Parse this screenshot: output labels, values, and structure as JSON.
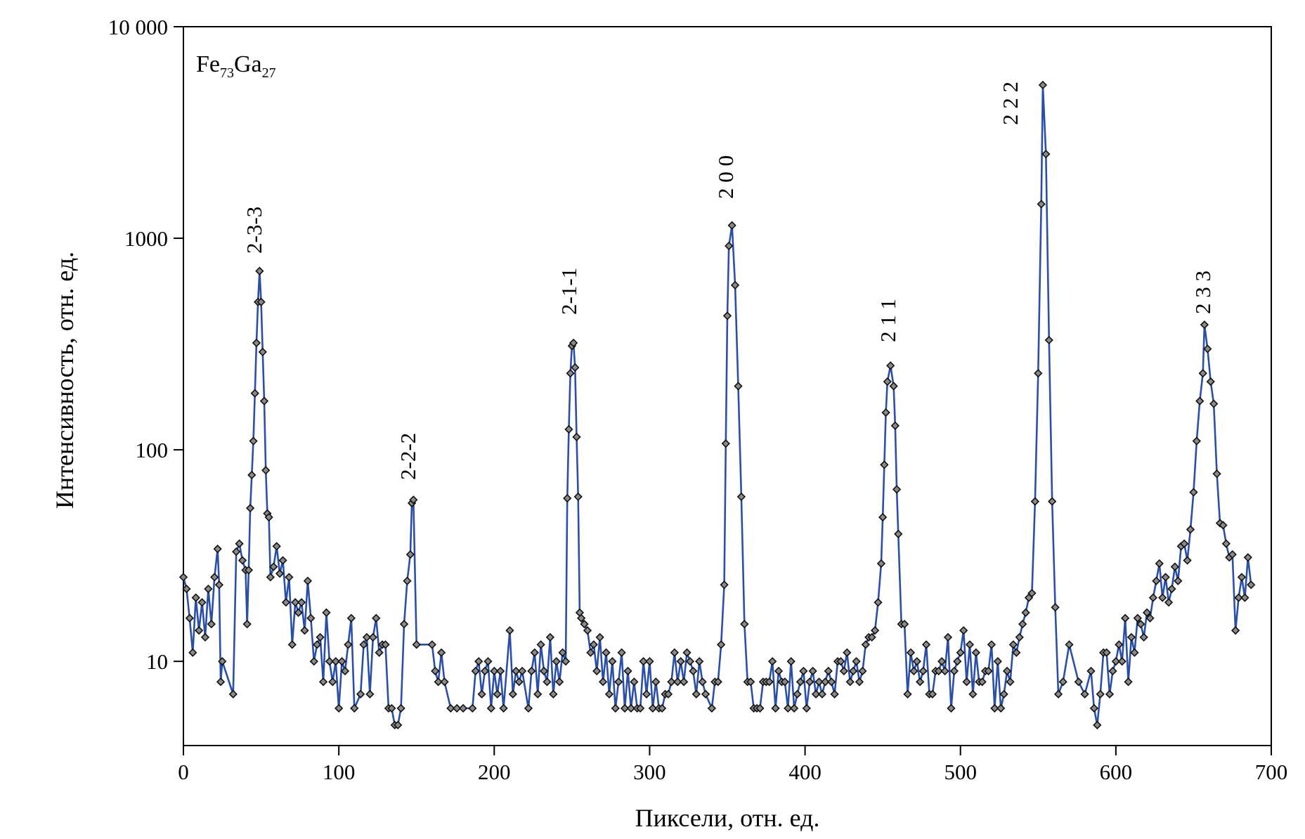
{
  "chart_data": {
    "type": "line",
    "xlabel": "Пиксели, отн. ед.",
    "ylabel": "Интенсивность, отн. ед.",
    "formula": [
      "Fe",
      "73",
      "Ga",
      "27"
    ],
    "annotations": [
      "2-3-3",
      "2-2-2",
      "2-1-1",
      "2 0 0",
      "2 1 1",
      "2 2 2",
      "2 3 3"
    ],
    "color": "#2a4fa8",
    "marker_color": "#8a8a8a",
    "log_y": true,
    "xlim": [
      0,
      700
    ],
    "xticks": [
      0,
      100,
      200,
      300,
      400,
      500,
      600,
      700
    ],
    "ylim": [
      4,
      10000
    ],
    "yticks": [
      10,
      100,
      1000,
      {
        "value": 10000,
        "label": "10 000"
      }
    ],
    "x": [
      0,
      2,
      4,
      6,
      8,
      10,
      12,
      14,
      16,
      18,
      20,
      22,
      23,
      24,
      25,
      32,
      34,
      36,
      38,
      40,
      41,
      42,
      43,
      44,
      45,
      46,
      47,
      48,
      49,
      50,
      51,
      52,
      53,
      54,
      55,
      56,
      58,
      60,
      62,
      64,
      66,
      68,
      70,
      72,
      74,
      76,
      78,
      80,
      82,
      84,
      86,
      88,
      90,
      92,
      94,
      96,
      98,
      100,
      102,
      104,
      106,
      108,
      110,
      114,
      116,
      118,
      120,
      122,
      124,
      126,
      128,
      130,
      132,
      134,
      136,
      138,
      140,
      142,
      144,
      146,
      147,
      148,
      150,
      160,
      162,
      164,
      166,
      168,
      172,
      176,
      180,
      186,
      188,
      190,
      192,
      194,
      196,
      198,
      200,
      202,
      204,
      206,
      210,
      212,
      214,
      216,
      218,
      222,
      224,
      226,
      228,
      230,
      232,
      234,
      236,
      238,
      240,
      242,
      244,
      246,
      247,
      248,
      249,
      250,
      251,
      252,
      253,
      254,
      255,
      256,
      258,
      260,
      262,
      264,
      266,
      268,
      270,
      272,
      274,
      276,
      278,
      280,
      282,
      284,
      286,
      288,
      290,
      292,
      294,
      296,
      298,
      300,
      302,
      304,
      306,
      308,
      310,
      312,
      314,
      316,
      318,
      320,
      322,
      324,
      326,
      328,
      330,
      332,
      334,
      336,
      340,
      342,
      344,
      346,
      348,
      349,
      350,
      351,
      353,
      355,
      357,
      359,
      361,
      363,
      365,
      367,
      369,
      371,
      373,
      375,
      377,
      379,
      381,
      383,
      385,
      387,
      389,
      391,
      393,
      395,
      397,
      399,
      401,
      403,
      405,
      407,
      409,
      411,
      413,
      415,
      417,
      419,
      421,
      423,
      425,
      427,
      429,
      431,
      433,
      435,
      437,
      439,
      441,
      443,
      445,
      447,
      449,
      450,
      451,
      452,
      453,
      455,
      457,
      458,
      459,
      460,
      462,
      464,
      466,
      468,
      470,
      472,
      474,
      476,
      478,
      480,
      482,
      484,
      486,
      488,
      490,
      492,
      494,
      496,
      498,
      500,
      502,
      504,
      506,
      508,
      510,
      512,
      514,
      516,
      518,
      520,
      522,
      524,
      526,
      528,
      530,
      532,
      534,
      536,
      538,
      540,
      542,
      544,
      546,
      548,
      550,
      552,
      553,
      555,
      557,
      559,
      561,
      563,
      566,
      570,
      576,
      580,
      584,
      586,
      588,
      590,
      592,
      594,
      596,
      598,
      600,
      602,
      604,
      606,
      608,
      610,
      612,
      614,
      616,
      618,
      620,
      622,
      624,
      626,
      628,
      630,
      632,
      634,
      636,
      638,
      640,
      642,
      644,
      646,
      648,
      650,
      652,
      654,
      656,
      657,
      659,
      661,
      663,
      665,
      667,
      669,
      671,
      673,
      675,
      677,
      679,
      681,
      683,
      685,
      687
    ],
    "values": [
      25,
      22,
      16,
      11,
      20,
      14,
      19,
      13,
      22,
      15,
      25,
      34,
      23,
      8,
      10,
      7,
      33,
      36,
      30,
      27,
      15,
      27,
      53,
      76,
      110,
      185,
      320,
      500,
      700,
      500,
      290,
      170,
      80,
      50,
      48,
      25,
      28,
      35,
      26,
      30,
      19,
      25,
      12,
      19,
      17,
      19,
      14,
      24,
      16,
      10,
      12,
      13,
      8,
      17,
      10,
      8,
      10,
      6,
      10,
      9,
      12,
      16,
      6,
      7,
      12,
      13,
      7,
      13,
      16,
      11,
      12,
      12,
      6,
      6,
      5,
      5,
      6,
      15,
      24,
      32,
      56,
      58,
      12,
      12,
      9,
      8,
      11,
      8,
      6,
      6,
      6,
      6,
      9,
      10,
      7,
      9,
      10,
      6,
      9,
      7,
      9,
      6,
      14,
      7,
      9,
      8,
      9,
      6,
      9,
      11,
      7,
      12,
      9,
      8,
      13,
      7,
      10,
      8,
      11,
      10,
      59,
      125,
      230,
      310,
      320,
      245,
      115,
      60,
      17,
      16,
      15,
      14,
      11,
      12,
      9,
      13,
      8,
      11,
      7,
      10,
      6,
      8,
      11,
      6,
      9,
      6,
      8,
      6,
      6,
      10,
      7,
      10,
      6,
      8,
      6,
      6,
      7,
      7,
      8,
      11,
      8,
      10,
      8,
      11,
      10,
      9,
      7,
      10,
      8,
      7,
      6,
      8,
      8,
      12,
      23,
      107,
      430,
      920,
      1150,
      600,
      200,
      60,
      15,
      8,
      8,
      6,
      6,
      6,
      8,
      8,
      8,
      10,
      6,
      9,
      8,
      8,
      6,
      10,
      6,
      7,
      8,
      9,
      6,
      8,
      9,
      7,
      8,
      7,
      8,
      9,
      8,
      7,
      10,
      10,
      9,
      11,
      8,
      9,
      10,
      8,
      9,
      12,
      13,
      13,
      14,
      19,
      29,
      48,
      85,
      150,
      210,
      250,
      200,
      130,
      65,
      40,
      15,
      15,
      7,
      11,
      9,
      10,
      8,
      9,
      12,
      7,
      7,
      9,
      9,
      10,
      9,
      13,
      6,
      9,
      10,
      11,
      14,
      8,
      12,
      7,
      11,
      8,
      8,
      9,
      9,
      12,
      6,
      10,
      6,
      7,
      9,
      8,
      12,
      11,
      13,
      15,
      17,
      20,
      21,
      57,
      230,
      1450,
      5300,
      2500,
      330,
      57,
      18,
      7,
      8,
      12,
      8,
      7,
      9,
      6,
      5,
      7,
      11,
      11,
      7,
      9,
      10,
      12,
      10,
      16,
      8,
      13,
      11,
      16,
      15,
      13,
      17,
      16,
      20,
      24,
      29,
      20,
      25,
      19,
      22,
      28,
      24,
      35,
      36,
      30,
      42,
      63,
      110,
      170,
      230,
      390,
      300,
      210,
      165,
      77,
      45,
      44,
      36,
      31,
      32,
      14,
      20,
      25,
      20,
      31,
      23
    ]
  }
}
